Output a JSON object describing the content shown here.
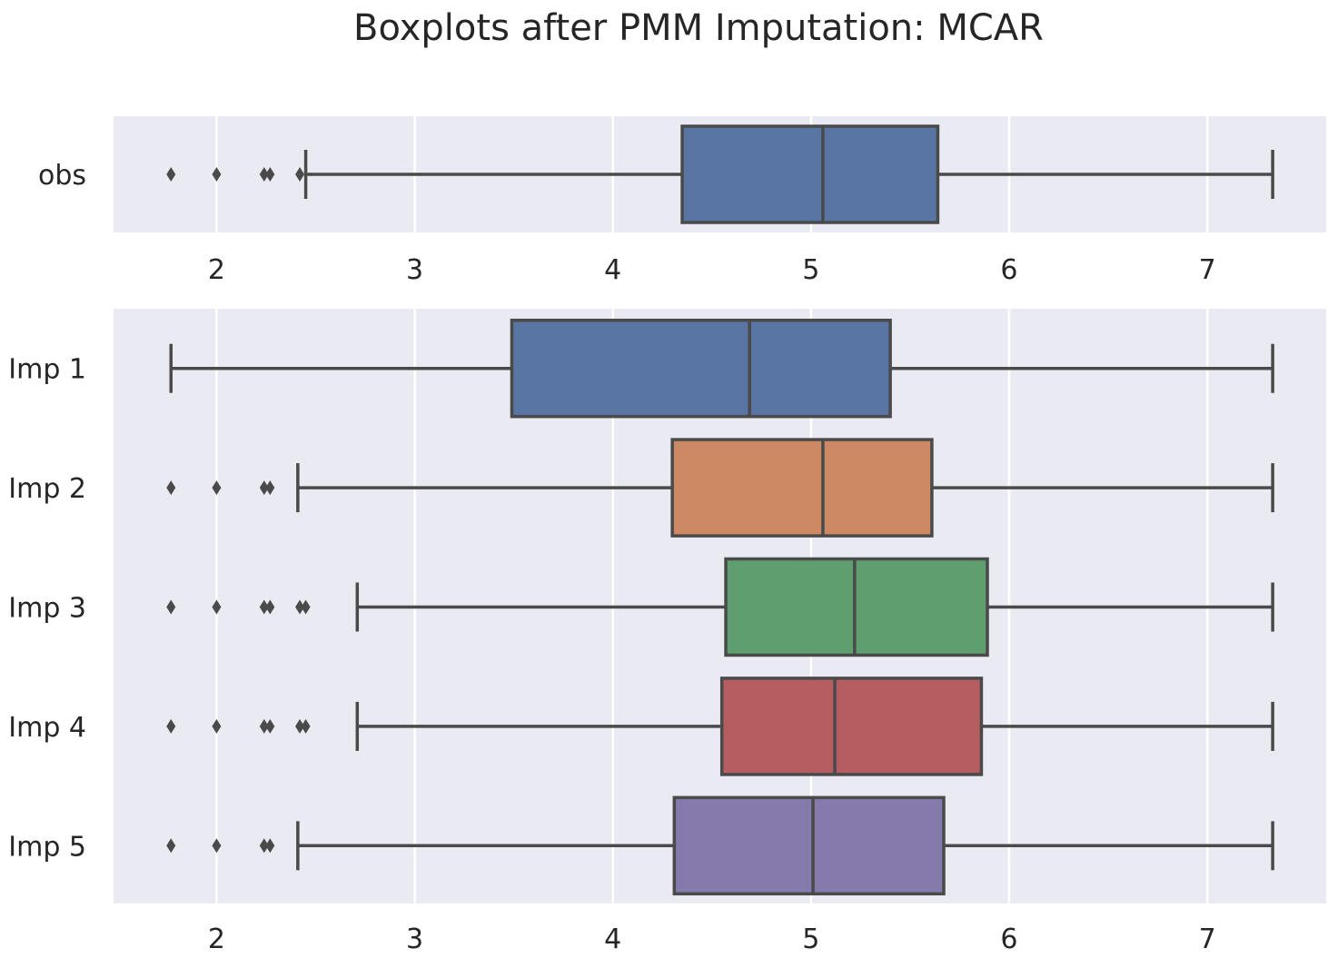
{
  "chart_data": {
    "type": "boxplot",
    "title": "Boxplots after PMM Imputation: MCAR",
    "xlim": [
      1.48,
      7.6
    ],
    "xticks": [
      "2",
      "3",
      "4",
      "5",
      "6",
      "7"
    ],
    "grid": true,
    "panels": [
      {
        "id": "top",
        "boxes": [
          {
            "label": "obs",
            "q1": 4.35,
            "median": 5.06,
            "q3": 5.64,
            "whisker_low": 2.45,
            "whisker_high": 7.33,
            "outliers": [
              1.77,
              2.0,
              2.24,
              2.27,
              2.42
            ],
            "color": "#5975a4"
          }
        ]
      },
      {
        "id": "bottom",
        "boxes": [
          {
            "label": "Imp 1",
            "q1": 3.49,
            "median": 4.69,
            "q3": 5.4,
            "whisker_low": 1.77,
            "whisker_high": 7.33,
            "outliers": [],
            "color": "#5975a4"
          },
          {
            "label": "Imp 2",
            "q1": 4.3,
            "median": 5.06,
            "q3": 5.61,
            "whisker_low": 2.41,
            "whisker_high": 7.33,
            "outliers": [
              1.77,
              2.0,
              2.24,
              2.27
            ],
            "color": "#cc8963"
          },
          {
            "label": "Imp 3",
            "q1": 4.57,
            "median": 5.22,
            "q3": 5.89,
            "whisker_low": 2.71,
            "whisker_high": 7.33,
            "outliers": [
              1.77,
              2.0,
              2.24,
              2.27,
              2.42,
              2.45
            ],
            "color": "#5f9e6e"
          },
          {
            "label": "Imp 4",
            "q1": 4.55,
            "median": 5.12,
            "q3": 5.86,
            "whisker_low": 2.71,
            "whisker_high": 7.33,
            "outliers": [
              1.77,
              2.0,
              2.24,
              2.27,
              2.42,
              2.45
            ],
            "color": "#b55d60"
          },
          {
            "label": "Imp 5",
            "q1": 4.31,
            "median": 5.01,
            "q3": 5.67,
            "whisker_low": 2.41,
            "whisker_high": 7.33,
            "outliers": [
              1.77,
              2.0,
              2.24,
              2.27
            ],
            "color": "#857aab"
          }
        ]
      }
    ]
  }
}
